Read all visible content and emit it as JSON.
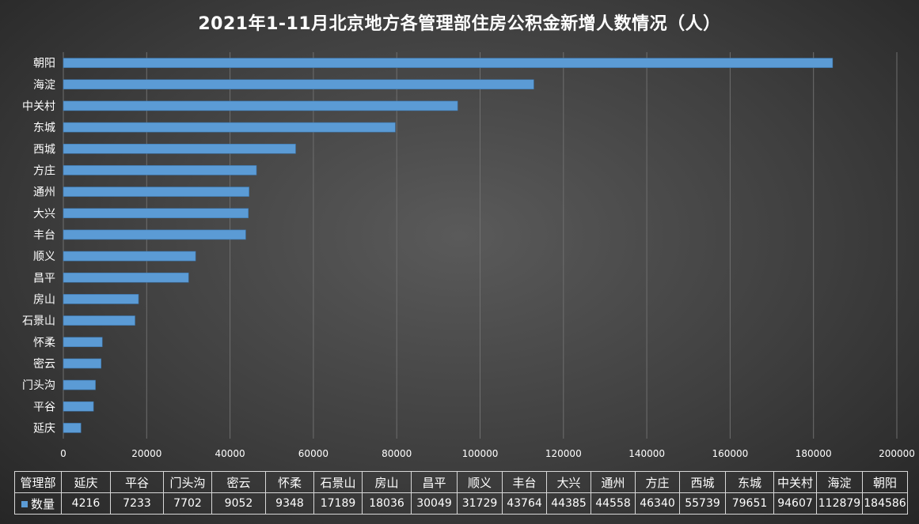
{
  "chart_data": {
    "type": "bar",
    "orientation": "horizontal",
    "title": "2021年1-11月北京地方各管理部住房公积金新增人数情况（人）",
    "categories": [
      "延庆",
      "平谷",
      "门头沟",
      "密云",
      "怀柔",
      "石景山",
      "房山",
      "昌平",
      "顺义",
      "丰台",
      "大兴",
      "通州",
      "方庄",
      "西城",
      "东城",
      "中关村",
      "海淀",
      "朝阳"
    ],
    "series": [
      {
        "name": "数量",
        "values": [
          4216,
          7233,
          7702,
          9052,
          9348,
          17189,
          18036,
          30049,
          31729,
          43764,
          44385,
          44558,
          46340,
          55739,
          79651,
          94607,
          112879,
          184586
        ]
      }
    ],
    "xlim": [
      0,
      200000
    ],
    "xticks": [
      "0",
      "20000",
      "40000",
      "60000",
      "80000",
      "100000",
      "120000",
      "140000",
      "160000",
      "180000",
      "200000"
    ],
    "grid": "vertical",
    "bar_color": "#5b9bd5",
    "data_table": {
      "header_label": "管理部",
      "row_label": "数量"
    }
  }
}
